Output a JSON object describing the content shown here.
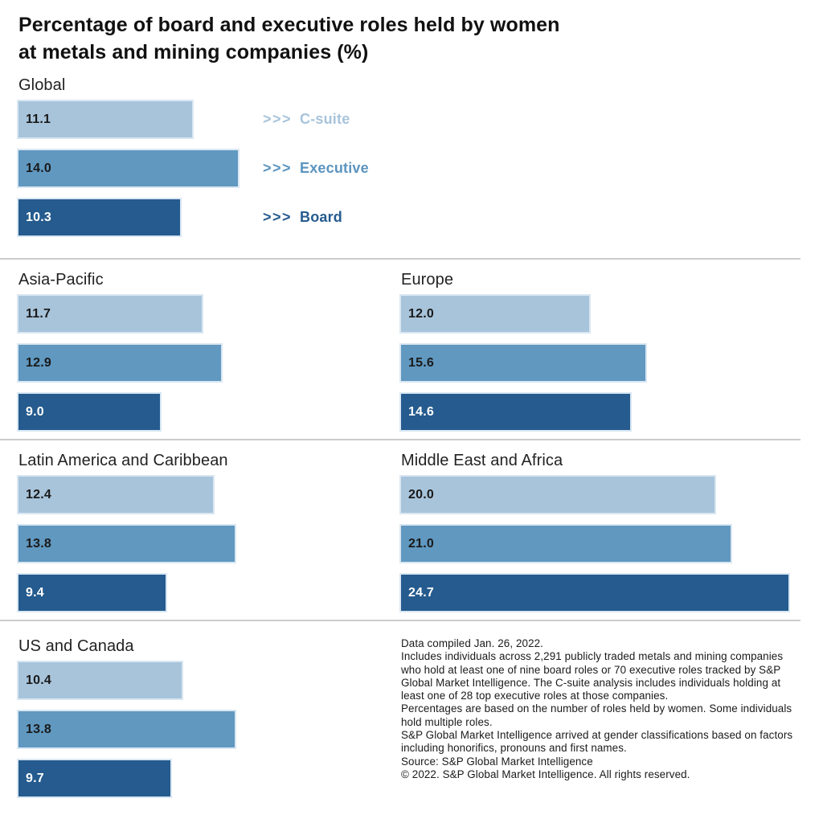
{
  "title_lines": [
    "Percentage of board and executive roles held by women",
    "at metals and mining companies (%)"
  ],
  "legend": {
    "arrow": ">>>",
    "items": [
      {
        "label": "C-suite",
        "color": "#a8c4db"
      },
      {
        "label": "Executive",
        "color": "#6098c0"
      },
      {
        "label": "Board",
        "color": "#255b8e"
      }
    ]
  },
  "colors": {
    "c_suite": "#a8c4db",
    "executive": "#6098c0",
    "board": "#255b8e",
    "divider": "#cccccc",
    "text": "#1a1a1a",
    "background": "#ffffff"
  },
  "chart_data": {
    "type": "bar",
    "orientation": "horizontal",
    "title": "Percentage of board and executive roles held by women at metals and mining companies (%)",
    "value_unit": "%",
    "xlim": [
      0,
      25.5
    ],
    "grid": false,
    "legend_position": "right-of-global-panel",
    "series_names": [
      "C-suite",
      "Executive",
      "Board"
    ],
    "regions": [
      {
        "name": "Global",
        "labels": [
          "11.1",
          "14.0",
          "10.3"
        ],
        "values": [
          11.1,
          14.0,
          10.3
        ]
      },
      {
        "name": "Asia-Pacific",
        "labels": [
          "11.7",
          "12.9",
          "9.0"
        ],
        "values": [
          11.7,
          12.9,
          9.0
        ]
      },
      {
        "name": "Europe",
        "labels": [
          "12.0",
          "15.6",
          "14.6"
        ],
        "values": [
          12.0,
          15.6,
          14.6
        ]
      },
      {
        "name": "Latin America and Caribbean",
        "labels": [
          "12.4",
          "13.8",
          "9.4"
        ],
        "values": [
          12.4,
          13.8,
          9.4
        ]
      },
      {
        "name": "Middle East and Africa",
        "labels": [
          "20.0",
          "21.0",
          "24.7"
        ],
        "values": [
          20.0,
          21.0,
          24.7
        ]
      },
      {
        "name": "US and Canada",
        "labels": [
          "10.4",
          "13.8",
          "9.7"
        ],
        "values": [
          10.4,
          13.8,
          9.7
        ]
      }
    ]
  },
  "footnotes": [
    "Data compiled Jan. 26, 2022.",
    "Includes individuals across 2,291 publicly traded metals and mining companies who hold at least one of nine board roles or 70 executive roles tracked by S&P Global Market Intelligence. The C-suite analysis includes individuals holding at least one of 28 top executive roles at those companies.",
    "Percentages are based on the number of roles held by women. Some individuals hold multiple roles.",
    "S&P Global Market Intelligence arrived at gender classifications based on factors including honorifics, pronouns and first names.",
    "Source: S&P Global Market Intelligence",
    "© 2022. S&P Global Market Intelligence. All rights reserved."
  ]
}
